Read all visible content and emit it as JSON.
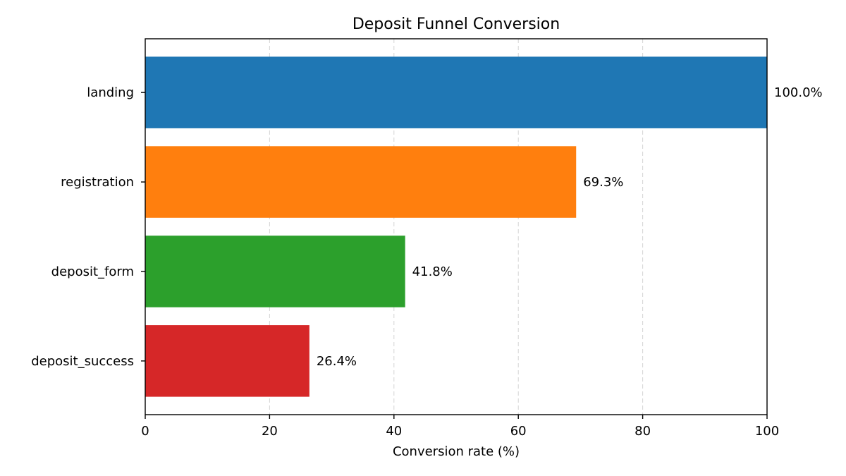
{
  "chart_data": {
    "type": "bar",
    "orientation": "horizontal",
    "title": "Deposit Funnel Conversion",
    "xlabel": "Conversion rate (%)",
    "ylabel": "",
    "categories": [
      "landing",
      "registration",
      "deposit_form",
      "deposit_success"
    ],
    "values": [
      100.0,
      69.3,
      41.8,
      26.4
    ],
    "value_labels": [
      "100.0%",
      "69.3%",
      "41.8%",
      "26.4%"
    ],
    "colors": [
      "#1f77b4",
      "#ff7f0e",
      "#2ca02c",
      "#d62728"
    ],
    "xlim": [
      0,
      100
    ],
    "xticks": [
      0,
      20,
      40,
      60,
      80,
      100
    ],
    "grid": "x-dashed",
    "legend": "none"
  }
}
